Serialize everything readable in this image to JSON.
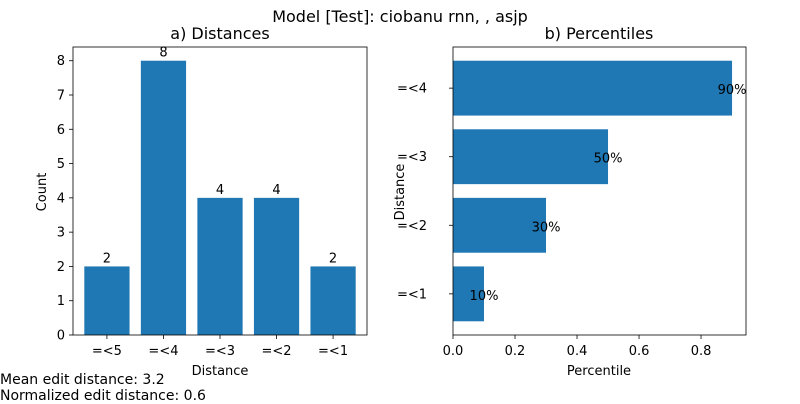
{
  "figure_title": "Model [Test]: ciobanu rnn, , asjp",
  "chart_data": [
    {
      "type": "bar",
      "title": "a) Distances",
      "xlabel": "Distance",
      "ylabel": "Count",
      "categories": [
        "=<5",
        "=<4",
        "=<3",
        "=<2",
        "=<1"
      ],
      "values": [
        2,
        8,
        4,
        4,
        2
      ],
      "data_labels": [
        "2",
        "8",
        "4",
        "4",
        "2"
      ],
      "ylim": [
        0,
        8.4
      ],
      "yticks": [
        0,
        1,
        2,
        3,
        4,
        5,
        6,
        7,
        8
      ],
      "grid": false,
      "color": "#1f77b4"
    },
    {
      "type": "bar",
      "orientation": "horizontal",
      "title": "b) Percentiles",
      "xlabel": "Percentile",
      "ylabel": "Distance",
      "categories": [
        "=<1",
        "=<2",
        "=<3",
        "=<4"
      ],
      "values": [
        0.1,
        0.3,
        0.5,
        0.9
      ],
      "data_labels": [
        "10%",
        "30%",
        "50%",
        "90%"
      ],
      "xlim": [
        0,
        0.9
      ],
      "xticks": [
        "0.0",
        "0.2",
        "0.4",
        "0.6",
        "0.8"
      ],
      "grid": false,
      "color": "#1f77b4"
    }
  ],
  "footnotes": {
    "mean": "Mean edit distance: 3.2",
    "normalized": "Normalized edit distance: 0.6"
  }
}
